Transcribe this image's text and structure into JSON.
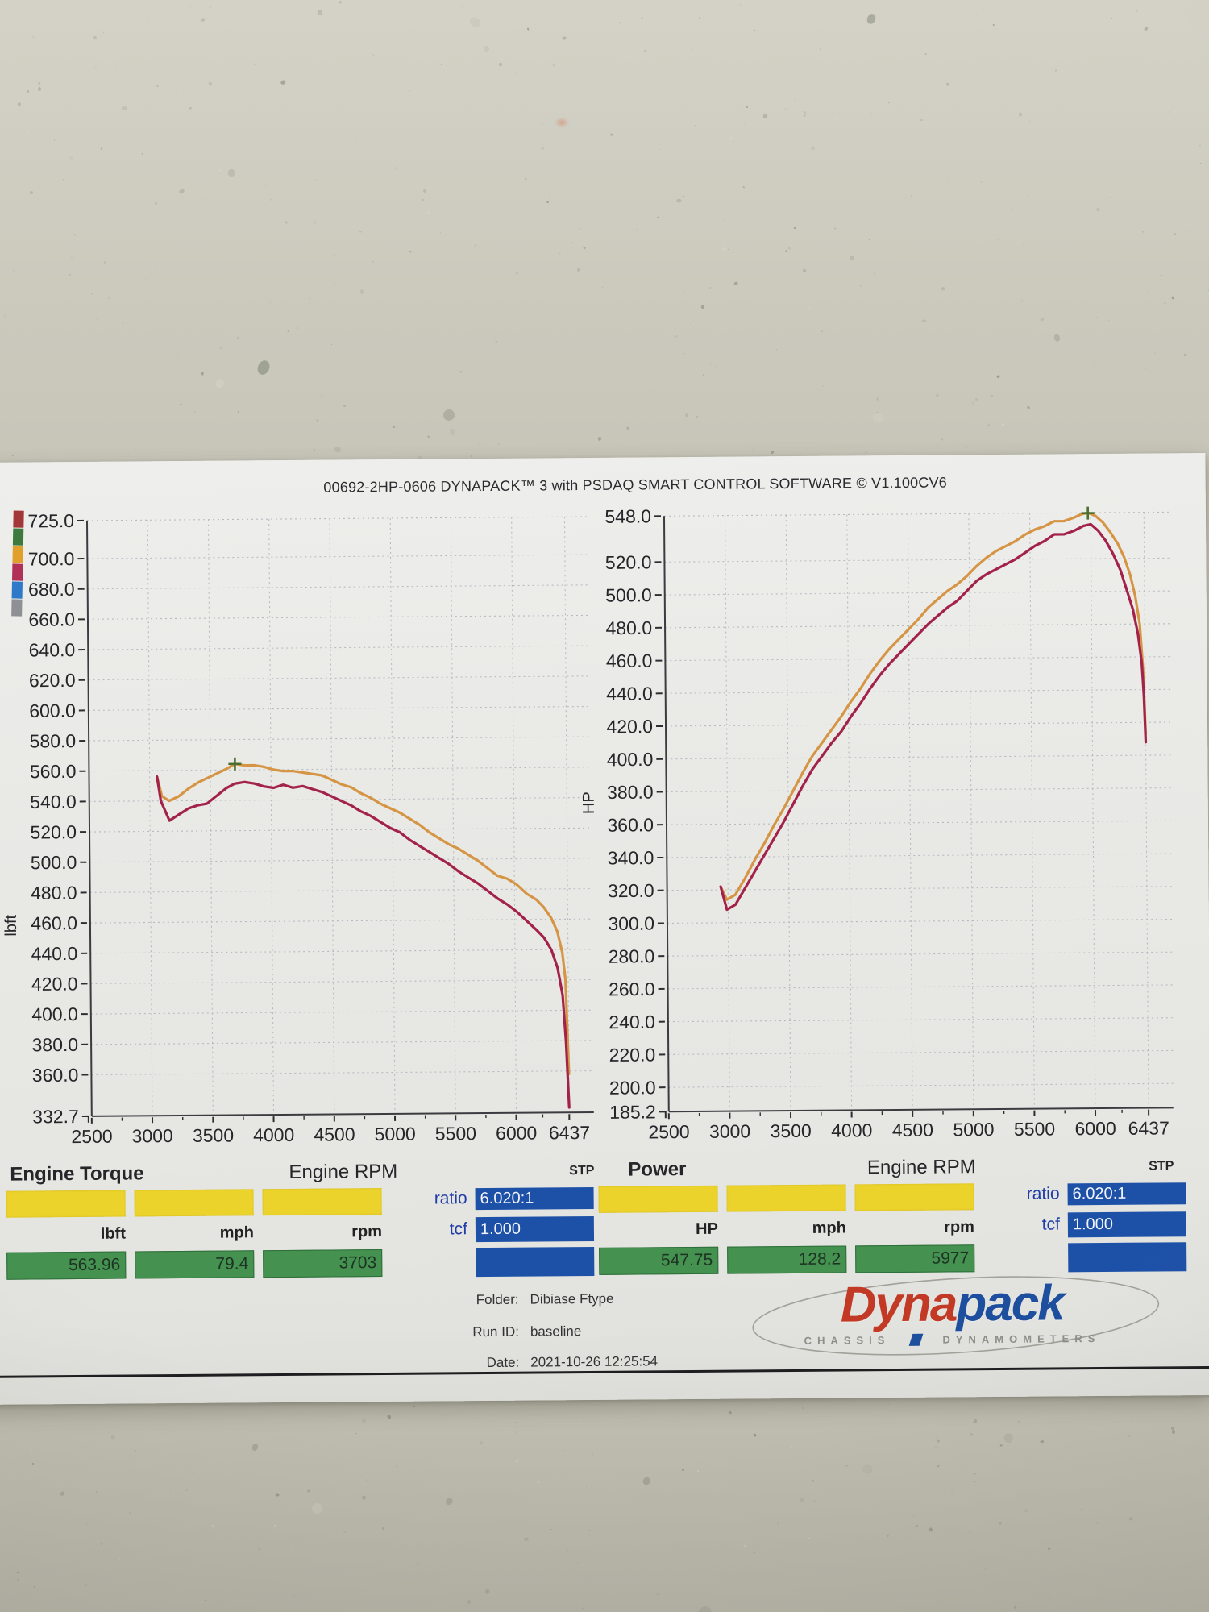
{
  "photo": {
    "surface_color": "#c8c6b9",
    "paper_color": "#e9e9e6"
  },
  "header": {
    "title": "00692-2HP-0606 DYNAPACK™ 3 with PSDAQ SMART CONTROL SOFTWARE © V1.100CV6"
  },
  "legend_key_colors": [
    "#a33636",
    "#3d7a3d",
    "#e1a02c",
    "#b03058",
    "#2f7ac8",
    "#8f9096"
  ],
  "series_colors": {
    "orange_trace": "#d59544",
    "maroon_trace": "#a3224a",
    "peak_marker": "#4a6e2e",
    "grid": "#aeb3ba",
    "axis": "#3c3c40"
  },
  "chart_data": [
    {
      "type": "line",
      "title": "Engine Torque",
      "xlabel": "Engine RPM",
      "ylabel": "lbft",
      "corner_note": "STP",
      "xlim": [
        2500,
        6640
      ],
      "ylim": [
        332.7,
        725.0
      ],
      "xticks": [
        2500,
        3000,
        3500,
        4000,
        4500,
        5000,
        5500,
        6000,
        6437
      ],
      "yticks": [
        725.0,
        700.0,
        680.0,
        660.0,
        640.0,
        620.0,
        600.0,
        580.0,
        560.0,
        540.0,
        520.0,
        500.0,
        480.0,
        460.0,
        440.0,
        420.0,
        400.0,
        380.0,
        360.0,
        332.7
      ],
      "grid": "dashed",
      "peak_marker": {
        "rpm": 3703,
        "value": 563.96
      },
      "series": [
        {
          "name": "orange_trace",
          "color_key": "orange_trace",
          "points": [
            [
              3060,
              556
            ],
            [
              3100,
              543
            ],
            [
              3160,
              540
            ],
            [
              3240,
              543
            ],
            [
              3320,
              548
            ],
            [
              3400,
              552
            ],
            [
              3480,
              555
            ],
            [
              3560,
              558
            ],
            [
              3640,
              561
            ],
            [
              3703,
              564
            ],
            [
              3780,
              563
            ],
            [
              3860,
              563
            ],
            [
              3940,
              562
            ],
            [
              4020,
              560
            ],
            [
              4100,
              559
            ],
            [
              4180,
              559
            ],
            [
              4260,
              558
            ],
            [
              4340,
              557
            ],
            [
              4420,
              556
            ],
            [
              4500,
              553
            ],
            [
              4580,
              550
            ],
            [
              4660,
              548
            ],
            [
              4740,
              544
            ],
            [
              4820,
              541
            ],
            [
              4900,
              537
            ],
            [
              4980,
              534
            ],
            [
              5060,
              531
            ],
            [
              5140,
              527
            ],
            [
              5220,
              523
            ],
            [
              5300,
              518
            ],
            [
              5380,
              514
            ],
            [
              5460,
              510
            ],
            [
              5540,
              507
            ],
            [
              5620,
              503
            ],
            [
              5700,
              499
            ],
            [
              5780,
              494
            ],
            [
              5860,
              489
            ],
            [
              5940,
              487
            ],
            [
              6020,
              483
            ],
            [
              6100,
              477
            ],
            [
              6180,
              473
            ],
            [
              6240,
              468
            ],
            [
              6300,
              461
            ],
            [
              6350,
              452
            ],
            [
              6390,
              438
            ],
            [
              6415,
              420
            ],
            [
              6437,
              358
            ]
          ]
        },
        {
          "name": "maroon_trace",
          "color_key": "maroon_trace",
          "points": [
            [
              3060,
              556
            ],
            [
              3090,
              540
            ],
            [
              3160,
              527
            ],
            [
              3240,
              531
            ],
            [
              3320,
              535
            ],
            [
              3400,
              537
            ],
            [
              3470,
              538
            ],
            [
              3550,
              543
            ],
            [
              3630,
              548
            ],
            [
              3700,
              551
            ],
            [
              3780,
              552
            ],
            [
              3860,
              551
            ],
            [
              3940,
              549
            ],
            [
              4020,
              548
            ],
            [
              4100,
              550
            ],
            [
              4180,
              548
            ],
            [
              4260,
              549
            ],
            [
              4340,
              547
            ],
            [
              4420,
              545
            ],
            [
              4500,
              542
            ],
            [
              4580,
              539
            ],
            [
              4660,
              536
            ],
            [
              4740,
              532
            ],
            [
              4820,
              529
            ],
            [
              4900,
              525
            ],
            [
              4980,
              521
            ],
            [
              5060,
              518
            ],
            [
              5140,
              513
            ],
            [
              5220,
              509
            ],
            [
              5300,
              505
            ],
            [
              5380,
              501
            ],
            [
              5460,
              497
            ],
            [
              5540,
              492
            ],
            [
              5620,
              488
            ],
            [
              5700,
              484
            ],
            [
              5780,
              479
            ],
            [
              5860,
              474
            ],
            [
              5940,
              470
            ],
            [
              6020,
              465
            ],
            [
              6100,
              459
            ],
            [
              6180,
              453
            ],
            [
              6240,
              448
            ],
            [
              6300,
              440
            ],
            [
              6350,
              428
            ],
            [
              6390,
              410
            ],
            [
              6415,
              380
            ],
            [
              6437,
              336
            ]
          ]
        }
      ]
    },
    {
      "type": "line",
      "title": "Power",
      "xlabel": "Engine RPM",
      "ylabel": "HP",
      "corner_note": "STP",
      "xlim": [
        2500,
        6640
      ],
      "ylim": [
        185.2,
        548.0
      ],
      "xticks": [
        2500,
        3000,
        3500,
        4000,
        4500,
        5000,
        5500,
        6000,
        6437
      ],
      "yticks": [
        548.0,
        520.0,
        500.0,
        480.0,
        460.0,
        440.0,
        420.0,
        400.0,
        380.0,
        360.0,
        340.0,
        320.0,
        300.0,
        280.0,
        260.0,
        240.0,
        220.0,
        200.0,
        185.2
      ],
      "grid": "dashed",
      "peak_marker": {
        "rpm": 5977,
        "value": 547.75
      },
      "series": [
        {
          "name": "orange_trace",
          "color_key": "orange_trace",
          "points": [
            [
              2940,
              322
            ],
            [
              2990,
              314
            ],
            [
              3060,
              317
            ],
            [
              3140,
              327
            ],
            [
              3220,
              338
            ],
            [
              3300,
              348
            ],
            [
              3380,
              359
            ],
            [
              3460,
              369
            ],
            [
              3540,
              380
            ],
            [
              3620,
              391
            ],
            [
              3700,
              401
            ],
            [
              3780,
              409
            ],
            [
              3860,
              417
            ],
            [
              3940,
              425
            ],
            [
              4020,
              434
            ],
            [
              4100,
              442
            ],
            [
              4180,
              451
            ],
            [
              4260,
              459
            ],
            [
              4340,
              466
            ],
            [
              4420,
              472
            ],
            [
              4500,
              478
            ],
            [
              4580,
              484
            ],
            [
              4660,
              491
            ],
            [
              4740,
              496
            ],
            [
              4820,
              501
            ],
            [
              4900,
              505
            ],
            [
              4980,
              510
            ],
            [
              5060,
              516
            ],
            [
              5140,
              521
            ],
            [
              5220,
              525
            ],
            [
              5300,
              528
            ],
            [
              5380,
              531
            ],
            [
              5460,
              535
            ],
            [
              5540,
              538
            ],
            [
              5620,
              540
            ],
            [
              5700,
              543
            ],
            [
              5780,
              543
            ],
            [
              5860,
              545
            ],
            [
              5920,
              547
            ],
            [
              5977,
              548
            ],
            [
              6040,
              546
            ],
            [
              6100,
              542
            ],
            [
              6160,
              536
            ],
            [
              6220,
              529
            ],
            [
              6270,
              521
            ],
            [
              6320,
              510
            ],
            [
              6360,
              497
            ],
            [
              6395,
              480
            ],
            [
              6420,
              452
            ],
            [
              6437,
              413
            ]
          ]
        },
        {
          "name": "maroon_trace",
          "color_key": "maroon_trace",
          "points": [
            [
              2940,
              322
            ],
            [
              2990,
              308
            ],
            [
              3060,
              311
            ],
            [
              3140,
              321
            ],
            [
              3220,
              331
            ],
            [
              3300,
              341
            ],
            [
              3380,
              351
            ],
            [
              3460,
              361
            ],
            [
              3540,
              372
            ],
            [
              3620,
              383
            ],
            [
              3700,
              393
            ],
            [
              3780,
              401
            ],
            [
              3860,
              409
            ],
            [
              3940,
              416
            ],
            [
              4020,
              425
            ],
            [
              4100,
              433
            ],
            [
              4180,
              442
            ],
            [
              4260,
              450
            ],
            [
              4340,
              457
            ],
            [
              4420,
              463
            ],
            [
              4500,
              469
            ],
            [
              4580,
              475
            ],
            [
              4660,
              481
            ],
            [
              4740,
              486
            ],
            [
              4820,
              491
            ],
            [
              4900,
              495
            ],
            [
              4980,
              501
            ],
            [
              5060,
              507
            ],
            [
              5140,
              511
            ],
            [
              5220,
              514
            ],
            [
              5300,
              517
            ],
            [
              5380,
              520
            ],
            [
              5460,
              524
            ],
            [
              5540,
              528
            ],
            [
              5620,
              531
            ],
            [
              5700,
              535
            ],
            [
              5780,
              535
            ],
            [
              5860,
              537
            ],
            [
              5940,
              540
            ],
            [
              6000,
              541
            ],
            [
              6060,
              537
            ],
            [
              6120,
              531
            ],
            [
              6180,
              523
            ],
            [
              6240,
              513
            ],
            [
              6290,
              501
            ],
            [
              6340,
              489
            ],
            [
              6380,
              474
            ],
            [
              6410,
              456
            ],
            [
              6425,
              436
            ],
            [
              6437,
              408
            ]
          ]
        }
      ]
    }
  ],
  "results": {
    "left": {
      "unit_labels": [
        "lbft",
        "mph",
        "rpm"
      ],
      "values": [
        "563.96",
        "79.4",
        "3703"
      ],
      "ratio_label": "ratio",
      "ratio_value": "6.020:1",
      "tcf_label": "tcf",
      "tcf_value": "1.000"
    },
    "right": {
      "unit_labels": [
        "HP",
        "mph",
        "rpm"
      ],
      "values": [
        "547.75",
        "128.2",
        "5977"
      ],
      "ratio_label": "ratio",
      "ratio_value": "6.020:1",
      "tcf_label": "tcf",
      "tcf_value": "1.000"
    }
  },
  "footer": {
    "folder_label": "Folder:",
    "folder_value": "Dibiase Ftype",
    "run_label": "Run ID:",
    "run_value": "baseline",
    "date_label": "Date:",
    "date_value": "2021-10-26 12:25:54"
  },
  "logo": {
    "part1": "Dyna",
    "part2": "pack",
    "sub1": "CHASSIS",
    "sub2": "DYNAMOMETERS"
  }
}
